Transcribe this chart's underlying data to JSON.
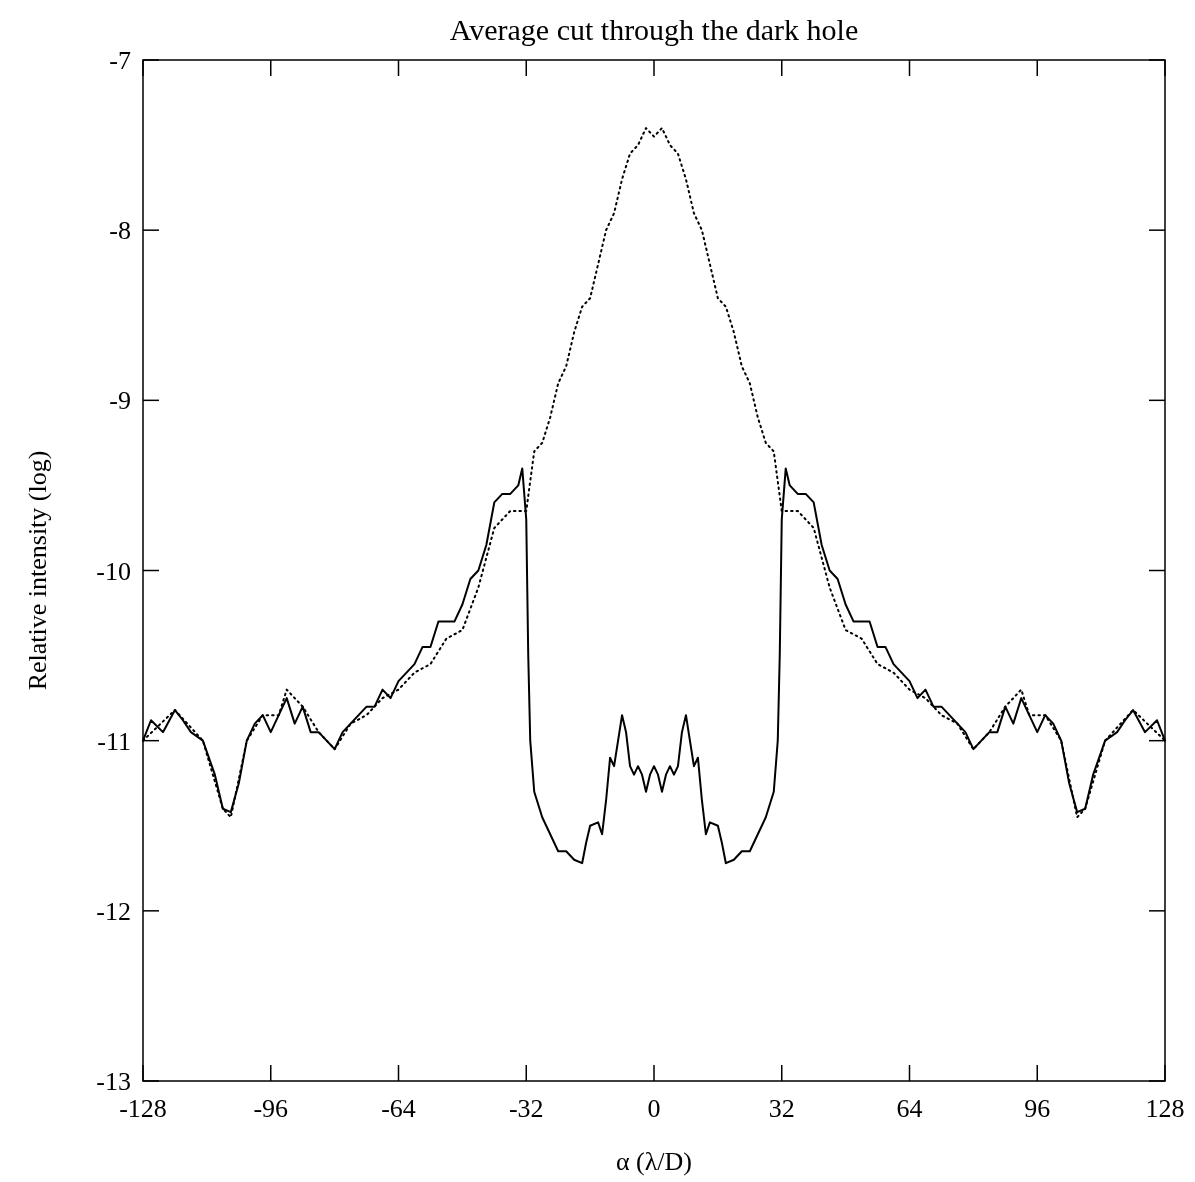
{
  "chart_data": {
    "type": "line",
    "title": "Average cut through the dark hole",
    "xlabel": "α (λ/D)",
    "ylabel": "Relative intensity (log)",
    "xlim": [
      -128,
      128
    ],
    "xticks": [
      -128,
      -96,
      -64,
      -32,
      0,
      32,
      64,
      96,
      128
    ],
    "ylim": [
      -13,
      -7
    ],
    "yticks": [
      -13,
      -12,
      -11,
      -10,
      -9,
      -8,
      -7
    ],
    "grid": false,
    "series": [
      {
        "color": "#000000",
        "line_style": "solid",
        "x": [
          -128,
          -126,
          -123,
          -120,
          -118,
          -116,
          -113,
          -110,
          -108,
          -106,
          -104,
          -102,
          -100,
          -98,
          -96,
          -94,
          -92,
          -90,
          -88,
          -86,
          -84,
          -82,
          -80,
          -78,
          -76,
          -74,
          -72,
          -70,
          -68,
          -66,
          -64,
          -62,
          -60,
          -58,
          -56,
          -54,
          -52,
          -50,
          -48,
          -46,
          -44,
          -42,
          -40,
          -38,
          -36,
          -34,
          -33,
          -32,
          -31.5,
          -31,
          -30,
          -28,
          -26,
          -24,
          -22,
          -20,
          -18,
          -17,
          -16,
          -14,
          -13,
          -12,
          -11,
          -10,
          -9,
          -8,
          -7,
          -6,
          -5,
          -4,
          -3,
          -2,
          -1,
          0,
          1,
          2,
          3,
          4,
          5,
          6,
          7,
          8,
          9,
          10,
          11,
          12,
          13,
          14,
          16,
          17,
          18,
          20,
          22,
          24,
          26,
          28,
          30,
          31,
          31.5,
          32,
          33,
          34,
          36,
          38,
          40,
          42,
          44,
          46,
          48,
          50,
          52,
          54,
          56,
          58,
          60,
          62,
          64,
          66,
          68,
          70,
          72,
          74,
          76,
          78,
          80,
          82,
          84,
          86,
          88,
          90,
          92,
          94,
          96,
          98,
          100,
          102,
          104,
          106,
          108,
          110,
          113,
          116,
          118,
          120,
          123,
          126,
          128
        ],
        "values": [
          -11.0,
          -10.88,
          -10.95,
          -10.82,
          -10.88,
          -10.95,
          -11.0,
          -11.2,
          -11.4,
          -11.42,
          -11.25,
          -11.0,
          -10.9,
          -10.85,
          -10.95,
          -10.85,
          -10.75,
          -10.9,
          -10.8,
          -10.95,
          -10.95,
          -11.0,
          -11.05,
          -10.95,
          -10.9,
          -10.85,
          -10.8,
          -10.8,
          -10.7,
          -10.75,
          -10.65,
          -10.6,
          -10.55,
          -10.45,
          -10.45,
          -10.3,
          -10.3,
          -10.3,
          -10.2,
          -10.05,
          -10.0,
          -9.85,
          -9.6,
          -9.55,
          -9.55,
          -9.5,
          -9.4,
          -9.7,
          -10.5,
          -11.0,
          -11.3,
          -11.45,
          -11.55,
          -11.65,
          -11.65,
          -11.7,
          -11.72,
          -11.6,
          -11.5,
          -11.48,
          -11.55,
          -11.35,
          -11.1,
          -11.15,
          -11.0,
          -10.85,
          -10.95,
          -11.15,
          -11.2,
          -11.15,
          -11.2,
          -11.3,
          -11.2,
          -11.15,
          -11.2,
          -11.3,
          -11.2,
          -11.15,
          -11.2,
          -11.15,
          -10.95,
          -10.85,
          -11.0,
          -11.15,
          -11.1,
          -11.35,
          -11.55,
          -11.48,
          -11.5,
          -11.6,
          -11.72,
          -11.7,
          -11.65,
          -11.65,
          -11.55,
          -11.45,
          -11.3,
          -11.0,
          -10.5,
          -9.7,
          -9.4,
          -9.5,
          -9.55,
          -9.55,
          -9.6,
          -9.85,
          -10.0,
          -10.05,
          -10.2,
          -10.3,
          -10.3,
          -10.3,
          -10.45,
          -10.45,
          -10.55,
          -10.6,
          -10.65,
          -10.75,
          -10.7,
          -10.8,
          -10.8,
          -10.85,
          -10.9,
          -10.95,
          -11.05,
          -11.0,
          -10.95,
          -10.95,
          -10.8,
          -10.9,
          -10.75,
          -10.85,
          -10.95,
          -10.85,
          -10.9,
          -11.0,
          -11.25,
          -11.42,
          -11.4,
          -11.2,
          -11.0,
          -10.95,
          -10.88,
          -10.82,
          -10.95,
          -10.88,
          -11.0
        ]
      },
      {
        "color": "#000000",
        "line_style": "dotted",
        "x": [
          -128,
          -120,
          -113,
          -108,
          -106,
          -102,
          -98,
          -94,
          -92,
          -88,
          -84,
          -80,
          -76,
          -72,
          -68,
          -64,
          -60,
          -56,
          -52,
          -48,
          -44,
          -40,
          -36,
          -32,
          -30,
          -28,
          -26,
          -24,
          -22,
          -20,
          -18,
          -16,
          -14,
          -12,
          -10,
          -8,
          -6,
          -4,
          -2,
          0,
          2,
          4,
          6,
          8,
          10,
          12,
          14,
          16,
          18,
          20,
          22,
          24,
          26,
          28,
          30,
          32,
          36,
          40,
          44,
          48,
          52,
          56,
          60,
          64,
          68,
          72,
          76,
          80,
          84,
          88,
          92,
          94,
          98,
          102,
          106,
          108,
          113,
          120,
          128
        ],
        "values": [
          -11.0,
          -10.82,
          -11.0,
          -11.4,
          -11.45,
          -11.0,
          -10.85,
          -10.85,
          -10.7,
          -10.8,
          -10.95,
          -11.05,
          -10.9,
          -10.85,
          -10.75,
          -10.7,
          -10.6,
          -10.55,
          -10.4,
          -10.35,
          -10.1,
          -9.75,
          -9.65,
          -9.65,
          -9.3,
          -9.25,
          -9.1,
          -8.9,
          -8.8,
          -8.6,
          -8.45,
          -8.4,
          -8.2,
          -8.0,
          -7.9,
          -7.7,
          -7.55,
          -7.5,
          -7.4,
          -7.45,
          -7.4,
          -7.5,
          -7.55,
          -7.7,
          -7.9,
          -8.0,
          -8.2,
          -8.4,
          -8.45,
          -8.6,
          -8.8,
          -8.9,
          -9.1,
          -9.25,
          -9.3,
          -9.65,
          -9.65,
          -9.75,
          -10.1,
          -10.35,
          -10.4,
          -10.55,
          -10.6,
          -10.7,
          -10.75,
          -10.85,
          -10.9,
          -11.05,
          -10.95,
          -10.8,
          -10.7,
          -10.85,
          -10.85,
          -11.0,
          -11.45,
          -11.4,
          -11.0,
          -10.82,
          -11.0
        ]
      }
    ]
  }
}
